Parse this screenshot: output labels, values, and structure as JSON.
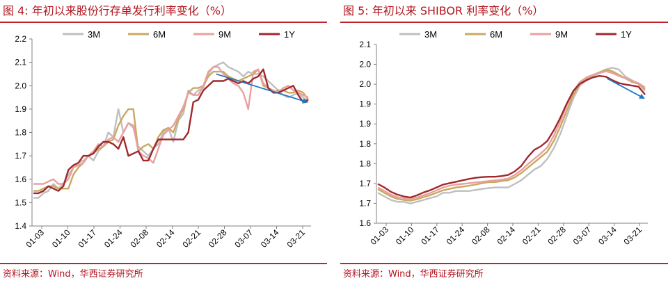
{
  "left": {
    "title": "图 4:  年初以来股份行存单发行利率变化（%）",
    "source": "资料来源：Wind，华西证券研究所",
    "chart_data": {
      "type": "line",
      "ylim": [
        1.4,
        2.2
      ],
      "yticks": [
        "1.4",
        "1.5",
        "1.6",
        "1.7",
        "1.8",
        "1.9",
        "2.0",
        "2.1",
        "2.2"
      ],
      "xticks": [
        "01-03",
        "01-10",
        "01-17",
        "01-24",
        "02-08",
        "02-14",
        "02-21",
        "02-28",
        "03-07",
        "03-14",
        "03-21"
      ],
      "legend_position": "top",
      "grid": false,
      "arrow": {
        "from": [
          0.66,
          2.05
        ],
        "to": [
          0.985,
          1.93
        ],
        "color": "#1f77c4"
      },
      "series": [
        {
          "name": "3M",
          "color": "#bfbfbf",
          "values": [
            1.52,
            1.52,
            1.54,
            1.55,
            1.58,
            1.56,
            1.58,
            1.62,
            1.65,
            1.67,
            1.68,
            1.7,
            1.68,
            1.72,
            1.74,
            1.8,
            1.78,
            1.9,
            1.8,
            1.84,
            1.82,
            1.74,
            1.72,
            1.7,
            1.73,
            1.75,
            1.8,
            1.82,
            1.76,
            1.85,
            1.88,
            1.98,
            1.96,
            1.98,
            1.99,
            2.05,
            2.08,
            2.09,
            2.1,
            2.08,
            2.07,
            2.06,
            2.04,
            2.06,
            2.05,
            2.05,
            2.04,
            2.02,
            2.0,
            1.98,
            1.96,
            1.95,
            1.96,
            1.97,
            1.95,
            1.93
          ]
        },
        {
          "name": "6M",
          "color": "#c9a860",
          "values": [
            1.55,
            1.55,
            1.56,
            1.57,
            1.57,
            1.56,
            1.56,
            1.56,
            1.62,
            1.65,
            1.67,
            1.7,
            1.71,
            1.73,
            1.74,
            1.76,
            1.77,
            1.83,
            1.87,
            1.9,
            1.9,
            1.72,
            1.74,
            1.75,
            1.73,
            1.78,
            1.81,
            1.82,
            1.8,
            1.86,
            1.9,
            1.97,
            1.99,
            1.99,
            2.0,
            2.04,
            2.06,
            2.06,
            2.06,
            2.04,
            2.03,
            2.02,
            2.03,
            2.04,
            2.05,
            2.07,
            2.0,
            1.99,
            1.97,
            1.98,
            1.98,
            1.97,
            1.97,
            1.98,
            1.97,
            1.94
          ]
        },
        {
          "name": "9M",
          "color": "#e8a0a0",
          "values": [
            1.58,
            1.58,
            1.58,
            1.59,
            1.6,
            1.58,
            1.58,
            1.6,
            1.65,
            1.66,
            1.67,
            1.7,
            1.72,
            1.75,
            1.74,
            1.77,
            1.78,
            1.76,
            1.8,
            1.84,
            1.83,
            1.72,
            1.7,
            1.69,
            1.67,
            1.73,
            1.79,
            1.81,
            1.83,
            1.87,
            1.91,
            1.97,
            1.96,
            1.96,
            2.0,
            2.06,
            2.08,
            2.08,
            2.05,
            2.03,
            2.01,
            2.0,
            1.97,
            1.9,
            2.06,
            2.07,
            2.01,
            1.99,
            1.98,
            1.97,
            1.99,
            2.0,
            1.98,
            1.97,
            1.96,
            1.95
          ]
        },
        {
          "name": "1Y",
          "color": "#a0282d",
          "values": [
            1.54,
            1.54,
            1.55,
            1.57,
            1.56,
            1.55,
            1.57,
            1.64,
            1.66,
            1.67,
            1.7,
            1.7,
            1.71,
            1.74,
            1.76,
            1.76,
            1.75,
            1.73,
            1.78,
            1.7,
            1.71,
            1.72,
            1.68,
            1.68,
            1.73,
            1.77,
            1.77,
            1.77,
            1.77,
            1.77,
            1.77,
            1.8,
            1.93,
            1.94,
            1.98,
            2.0,
            2.02,
            2.02,
            2.02,
            2.03,
            2.02,
            2.01,
            2.02,
            2.01,
            2.03,
            2.04,
            2.07,
            1.99,
            1.97,
            1.97,
            1.98,
            1.99,
            2.0,
            1.96,
            1.93,
            1.94
          ]
        }
      ]
    }
  },
  "right": {
    "title": "图 5:  年初以来 SHIBOR 利率变化（%）",
    "source": "资料来源：Wind，华西证券研究所",
    "chart_data": {
      "type": "line",
      "ylim": [
        1.6,
        2.1
      ],
      "yticks": [
        "1.6",
        "1.7",
        "1.7",
        "1.8",
        "1.8",
        "1.9",
        "1.9",
        "2.0",
        "2.0",
        "2.1"
      ],
      "xticks": [
        "01-03",
        "01-10",
        "01-17",
        "01-24",
        "02-08",
        "02-14",
        "02-21",
        "02-28",
        "03-07",
        "03-14",
        "03-21"
      ],
      "legend_position": "top",
      "grid": false,
      "arrow": {
        "from": [
          0.85,
          2.005
        ],
        "to": [
          0.985,
          1.95
        ],
        "color": "#1f77c4"
      },
      "series": [
        {
          "name": "3M",
          "color": "#bfbfbf",
          "values": [
            1.685,
            1.675,
            1.665,
            1.66,
            1.66,
            1.655,
            1.66,
            1.665,
            1.67,
            1.675,
            1.685,
            1.685,
            1.69,
            1.69,
            1.69,
            1.693,
            1.696,
            1.698,
            1.7,
            1.7,
            1.7,
            1.71,
            1.72,
            1.735,
            1.75,
            1.76,
            1.78,
            1.81,
            1.85,
            1.9,
            1.95,
            1.985,
            2.0,
            2.01,
            2.02,
            2.03,
            2.035,
            2.03,
            2.01,
            2.0,
            1.99,
            1.97
          ]
        },
        {
          "name": "6M",
          "color": "#c9a860",
          "values": [
            1.695,
            1.685,
            1.675,
            1.668,
            1.665,
            1.663,
            1.667,
            1.673,
            1.678,
            1.685,
            1.692,
            1.696,
            1.7,
            1.702,
            1.705,
            1.708,
            1.712,
            1.715,
            1.715,
            1.718,
            1.72,
            1.728,
            1.74,
            1.755,
            1.77,
            1.785,
            1.8,
            1.83,
            1.87,
            1.915,
            1.96,
            1.99,
            2.005,
            2.015,
            2.022,
            2.03,
            2.025,
            2.015,
            2.005,
            1.995,
            1.99,
            1.975
          ]
        },
        {
          "name": "9M",
          "color": "#e8a0a0",
          "values": [
            1.7,
            1.69,
            1.68,
            1.673,
            1.67,
            1.668,
            1.672,
            1.678,
            1.684,
            1.692,
            1.7,
            1.705,
            1.708,
            1.71,
            1.712,
            1.714,
            1.716,
            1.718,
            1.72,
            1.722,
            1.725,
            1.735,
            1.748,
            1.765,
            1.78,
            1.795,
            1.812,
            1.845,
            1.885,
            1.93,
            1.97,
            1.995,
            2.008,
            2.015,
            2.02,
            2.025,
            2.02,
            2.012,
            2.005,
            1.998,
            1.992,
            1.98
          ]
        },
        {
          "name": "1Y",
          "color": "#a0282d",
          "values": [
            1.71,
            1.7,
            1.688,
            1.68,
            1.675,
            1.672,
            1.678,
            1.686,
            1.692,
            1.7,
            1.708,
            1.712,
            1.716,
            1.72,
            1.724,
            1.727,
            1.729,
            1.73,
            1.73,
            1.732,
            1.735,
            1.745,
            1.76,
            1.785,
            1.805,
            1.815,
            1.83,
            1.86,
            1.895,
            1.935,
            1.97,
            1.99,
            2.0,
            2.008,
            2.012,
            2.01,
            2.0,
            1.992,
            1.988,
            1.985,
            1.982,
            1.96
          ]
        }
      ]
    }
  }
}
